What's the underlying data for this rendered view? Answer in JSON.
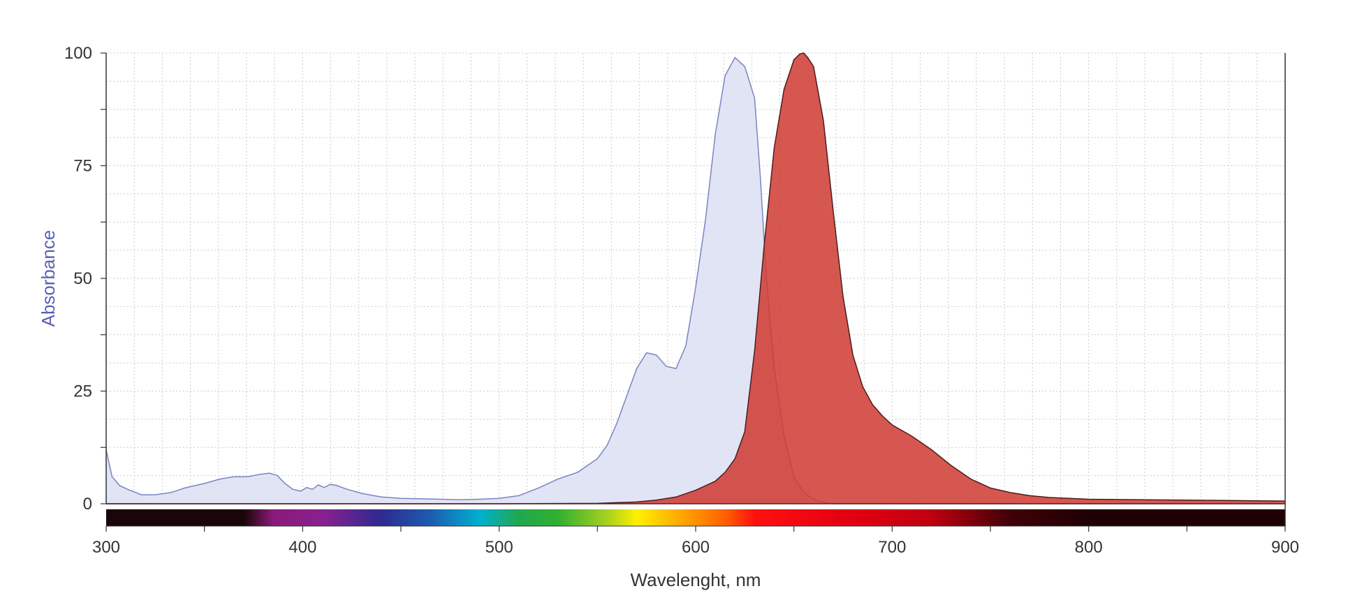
{
  "chart_data": {
    "type": "area",
    "title": "",
    "xlabel": "Wavelenght, nm",
    "ylabel": "Absorbance",
    "xlim": [
      300,
      900
    ],
    "ylim": [
      0,
      100
    ],
    "x_ticks": [
      300,
      400,
      500,
      600,
      700,
      800,
      900
    ],
    "y_ticks": [
      0,
      25,
      50,
      75,
      100
    ],
    "grid": true,
    "legend": "none",
    "wavelength_color_bar": true,
    "series": [
      {
        "role": "absorption",
        "color": "#7b84c0",
        "fill": "#e1e4f5",
        "x": [
          300,
          303,
          307,
          312,
          318,
          325,
          333,
          340,
          350,
          358,
          365,
          372,
          378,
          383,
          387,
          391,
          395,
          399,
          402,
          405,
          408,
          411,
          414,
          417,
          422,
          430,
          440,
          450,
          460,
          470,
          480,
          490,
          500,
          510,
          520,
          530,
          540,
          550,
          555,
          560,
          565,
          570,
          575,
          580,
          585,
          590,
          595,
          600,
          605,
          610,
          615,
          620,
          625,
          630,
          633,
          636,
          640,
          645,
          650,
          655,
          660,
          665,
          670,
          675,
          680,
          690,
          700,
          750,
          800,
          850,
          900
        ],
        "y": [
          12,
          6,
          4,
          3,
          2,
          2,
          2.5,
          3.5,
          4.5,
          5.5,
          6,
          6,
          6.5,
          6.8,
          6.3,
          4.5,
          3.2,
          2.8,
          3.6,
          3.2,
          4.2,
          3.6,
          4.3,
          4.1,
          3.3,
          2.3,
          1.5,
          1.2,
          1.1,
          1.0,
          0.9,
          1.0,
          1.2,
          1.8,
          3.5,
          5.5,
          7.0,
          10.0,
          13.0,
          18.0,
          24.0,
          30.0,
          33.5,
          33.0,
          30.5,
          30.0,
          35.0,
          48.0,
          63.0,
          82.0,
          95.0,
          99.0,
          97.0,
          90.0,
          72.0,
          50.0,
          30.0,
          15.0,
          6.0,
          2.5,
          1.0,
          0.3,
          0,
          0,
          0,
          0,
          0,
          0,
          0,
          0,
          0
        ]
      },
      {
        "role": "emission",
        "color": "#4a1e1e",
        "fill": "#cf3a30",
        "x": [
          300,
          500,
          550,
          570,
          580,
          590,
          600,
          610,
          615,
          620,
          625,
          630,
          635,
          640,
          645,
          650,
          653,
          655,
          657,
          660,
          665,
          670,
          675,
          680,
          685,
          690,
          695,
          700,
          710,
          720,
          730,
          740,
          750,
          760,
          770,
          780,
          790,
          800,
          850,
          900
        ],
        "y": [
          0,
          0,
          0.1,
          0.4,
          0.8,
          1.5,
          3.0,
          5.0,
          7.0,
          10.0,
          16.0,
          34.0,
          58.0,
          79.0,
          92.0,
          98.5,
          99.8,
          100,
          99.0,
          97.0,
          85.0,
          65.0,
          46.0,
          33.0,
          26.0,
          22.0,
          19.5,
          17.5,
          15.0,
          12.0,
          8.5,
          5.5,
          3.5,
          2.5,
          1.8,
          1.4,
          1.2,
          1.0,
          0.8,
          0.6
        ]
      }
    ]
  },
  "colors": {
    "grid": "#cccccc",
    "axis": "#333333",
    "ylabel": "#5b60b0",
    "xlabel": "#333333"
  }
}
